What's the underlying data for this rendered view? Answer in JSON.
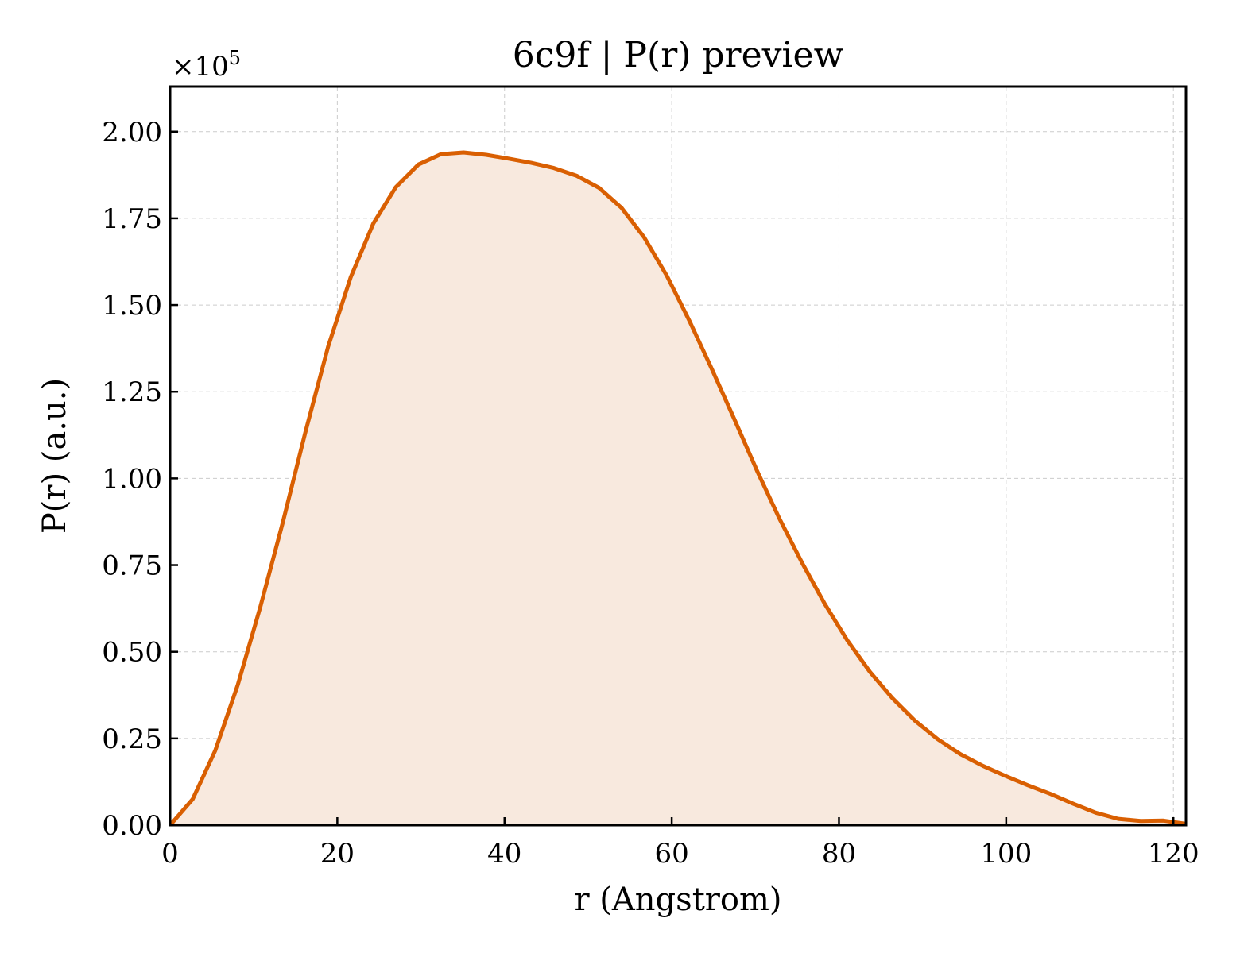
{
  "chart_data": {
    "type": "area",
    "title": "6c9f | P(r) preview",
    "xlabel": "r (Angstrom)",
    "ylabel": "P(r) (a.u.)",
    "y_multiplier_label": "×10",
    "y_multiplier_exponent": "5",
    "xlim": [
      0,
      121.5
    ],
    "ylim": [
      0,
      2.13
    ],
    "x_ticks": [
      0,
      20,
      40,
      60,
      80,
      100,
      120
    ],
    "x_tick_labels": [
      "0",
      "20",
      "40",
      "60",
      "80",
      "100",
      "120"
    ],
    "y_ticks": [
      0,
      0.25,
      0.5,
      0.75,
      1.0,
      1.25,
      1.5,
      1.75,
      2.0
    ],
    "y_tick_labels": [
      "0.00",
      "0.25",
      "0.50",
      "0.75",
      "1.00",
      "1.25",
      "1.50",
      "1.75",
      "2.00"
    ],
    "grid": true,
    "series": [
      {
        "color": "#d95f02",
        "fill_color": "#f8e9de",
        "x": [
          0,
          2.7,
          5.4,
          8.1,
          10.8,
          13.5,
          16.2,
          18.9,
          21.6,
          24.3,
          27.0,
          29.7,
          32.4,
          35.1,
          37.8,
          40.5,
          43.2,
          45.9,
          48.6,
          51.3,
          54.0,
          56.7,
          59.4,
          62.1,
          64.8,
          67.5,
          70.2,
          72.9,
          75.6,
          78.3,
          81.0,
          83.7,
          86.4,
          89.1,
          91.8,
          94.5,
          97.2,
          99.9,
          102.6,
          105.3,
          108.0,
          110.7,
          113.4,
          116.1,
          118.8,
          121.5
        ],
        "y": [
          0.0,
          0.075,
          0.215,
          0.405,
          0.63,
          0.875,
          1.135,
          1.38,
          1.58,
          1.735,
          1.84,
          1.905,
          1.935,
          1.94,
          1.933,
          1.922,
          1.91,
          1.895,
          1.873,
          1.838,
          1.78,
          1.695,
          1.585,
          1.455,
          1.315,
          1.17,
          1.022,
          0.883,
          0.756,
          0.638,
          0.533,
          0.442,
          0.366,
          0.301,
          0.248,
          0.205,
          0.171,
          0.142,
          0.115,
          0.09,
          0.062,
          0.036,
          0.018,
          0.012,
          0.013,
          0.004
        ]
      }
    ]
  }
}
